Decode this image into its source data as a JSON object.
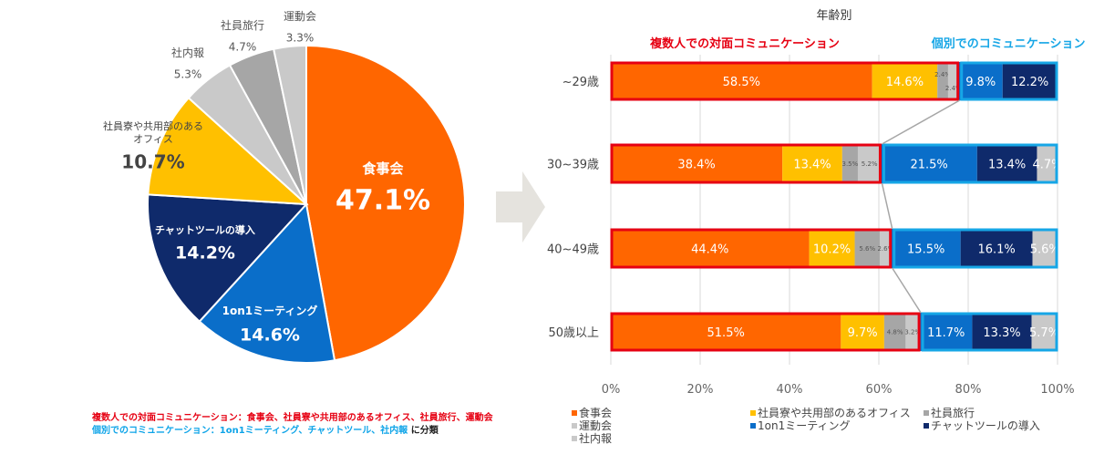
{
  "colors": {
    "shokuji": "#ff6600",
    "ryo": "#ffc000",
    "ryoko": "#a6a6a6",
    "undo": "#c9c9c9",
    "mtg": "#0a6ec9",
    "chat": "#0f2a6b",
    "shanaiho": "#c9c9c9",
    "red_border": "#e60012",
    "blue_border": "#16a6e6",
    "arrow": "#e5e3de"
  },
  "chart_data": [
    {
      "type": "pie",
      "title": "",
      "slices": [
        {
          "label": "食事会",
          "value": 47.1,
          "value_label": "47.1%",
          "color_key": "shokuji"
        },
        {
          "label": "1on1ミーティング",
          "value": 14.6,
          "value_label": "14.6%",
          "color_key": "mtg"
        },
        {
          "label": "チャットツールの導入",
          "value": 14.2,
          "value_label": "14.2%",
          "color_key": "chat"
        },
        {
          "label_lines": [
            "社員寮や共用部のある",
            "オフィス"
          ],
          "value": 10.7,
          "value_label": "10.7%",
          "color_key": "ryo"
        },
        {
          "label": "社内報",
          "value": 5.3,
          "value_label": "5.3%",
          "color_key": "undo"
        },
        {
          "label": "社員旅行",
          "value": 4.7,
          "value_label": "4.7%",
          "color_key": "ryoko"
        },
        {
          "label": "運動会",
          "value": 3.3,
          "value_label": "3.3%",
          "color_key": "undo"
        }
      ]
    },
    {
      "type": "bar",
      "orientation": "horizontal",
      "stacked": true,
      "title": "年齢別",
      "categories": [
        "~29歳",
        "30~39歳",
        "40~49歳",
        "50歳以上"
      ],
      "xlim": [
        0,
        100
      ],
      "xticks": [
        "0%",
        "20%",
        "40%",
        "60%",
        "80%",
        "100%"
      ],
      "group_labels": {
        "multi": "複数人での対面コミュニケーション",
        "indiv": "個別でのコミュニケーション"
      },
      "series": [
        {
          "name": "食事会",
          "group": "multi",
          "color_key": "shokuji",
          "values": [
            58.5,
            38.4,
            44.4,
            51.5
          ]
        },
        {
          "name": "社員寮や共用部のあるオフィス",
          "group": "multi",
          "color_key": "ryo",
          "values": [
            14.6,
            13.4,
            10.2,
            9.7
          ]
        },
        {
          "name": "社員旅行",
          "group": "multi",
          "color_key": "ryoko",
          "values": [
            2.4,
            3.5,
            5.6,
            4.8
          ]
        },
        {
          "name": "運動会",
          "group": "multi",
          "color_key": "undo",
          "values": [
            2.4,
            5.2,
            2.6,
            3.2
          ]
        },
        {
          "name": "1on1ミーティング",
          "group": "indiv",
          "color_key": "mtg",
          "values": [
            9.8,
            21.5,
            15.5,
            11.7
          ]
        },
        {
          "name": "チャットツールの導入",
          "group": "indiv",
          "color_key": "chat",
          "values": [
            12.2,
            13.4,
            16.1,
            13.3
          ]
        },
        {
          "name": "社内報",
          "group": "indiv",
          "color_key": "shanaiho",
          "values": [
            0,
            4.7,
            5.6,
            5.7
          ]
        }
      ],
      "data_labels": [
        [
          "58.5%",
          "14.6%",
          "2.4%",
          "2.4%",
          "9.8%",
          "12.2%",
          ""
        ],
        [
          "38.4%",
          "13.4%",
          "3.5%",
          "5.2%",
          "21.5%",
          "13.4%",
          "4.7%"
        ],
        [
          "44.4%",
          "10.2%",
          "5.6%",
          "2.6%",
          "15.5%",
          "16.1%",
          "5.6%"
        ],
        [
          "51.5%",
          "9.7%",
          "4.8%",
          "3.2%",
          "11.7%",
          "13.3%",
          "5.7%"
        ]
      ],
      "legend": {
        "position": "bottom",
        "items": [
          {
            "label": "食事会",
            "color_key": "shokuji"
          },
          {
            "label": "社員寮や共用部のあるオフィス",
            "color_key": "ryo"
          },
          {
            "label": "社員旅行",
            "color_key": "ryoko"
          },
          {
            "label": "運動会",
            "color_key": "undo"
          },
          {
            "label": "1on1ミーティング",
            "color_key": "mtg"
          },
          {
            "label": "チャットツールの導入",
            "color_key": "chat"
          },
          {
            "label": "社内報",
            "color_key": "shanaiho"
          }
        ]
      }
    }
  ],
  "notes": {
    "multi_line": "複数人での対面コミュニケーション：食事会、社員寮や共用部のあるオフィス、社員旅行、運動会",
    "indiv_line": "個別でのコミュニケーション：1on1ミーティング、チャットツール、社内報",
    "indiv_suffix": "に分類"
  }
}
